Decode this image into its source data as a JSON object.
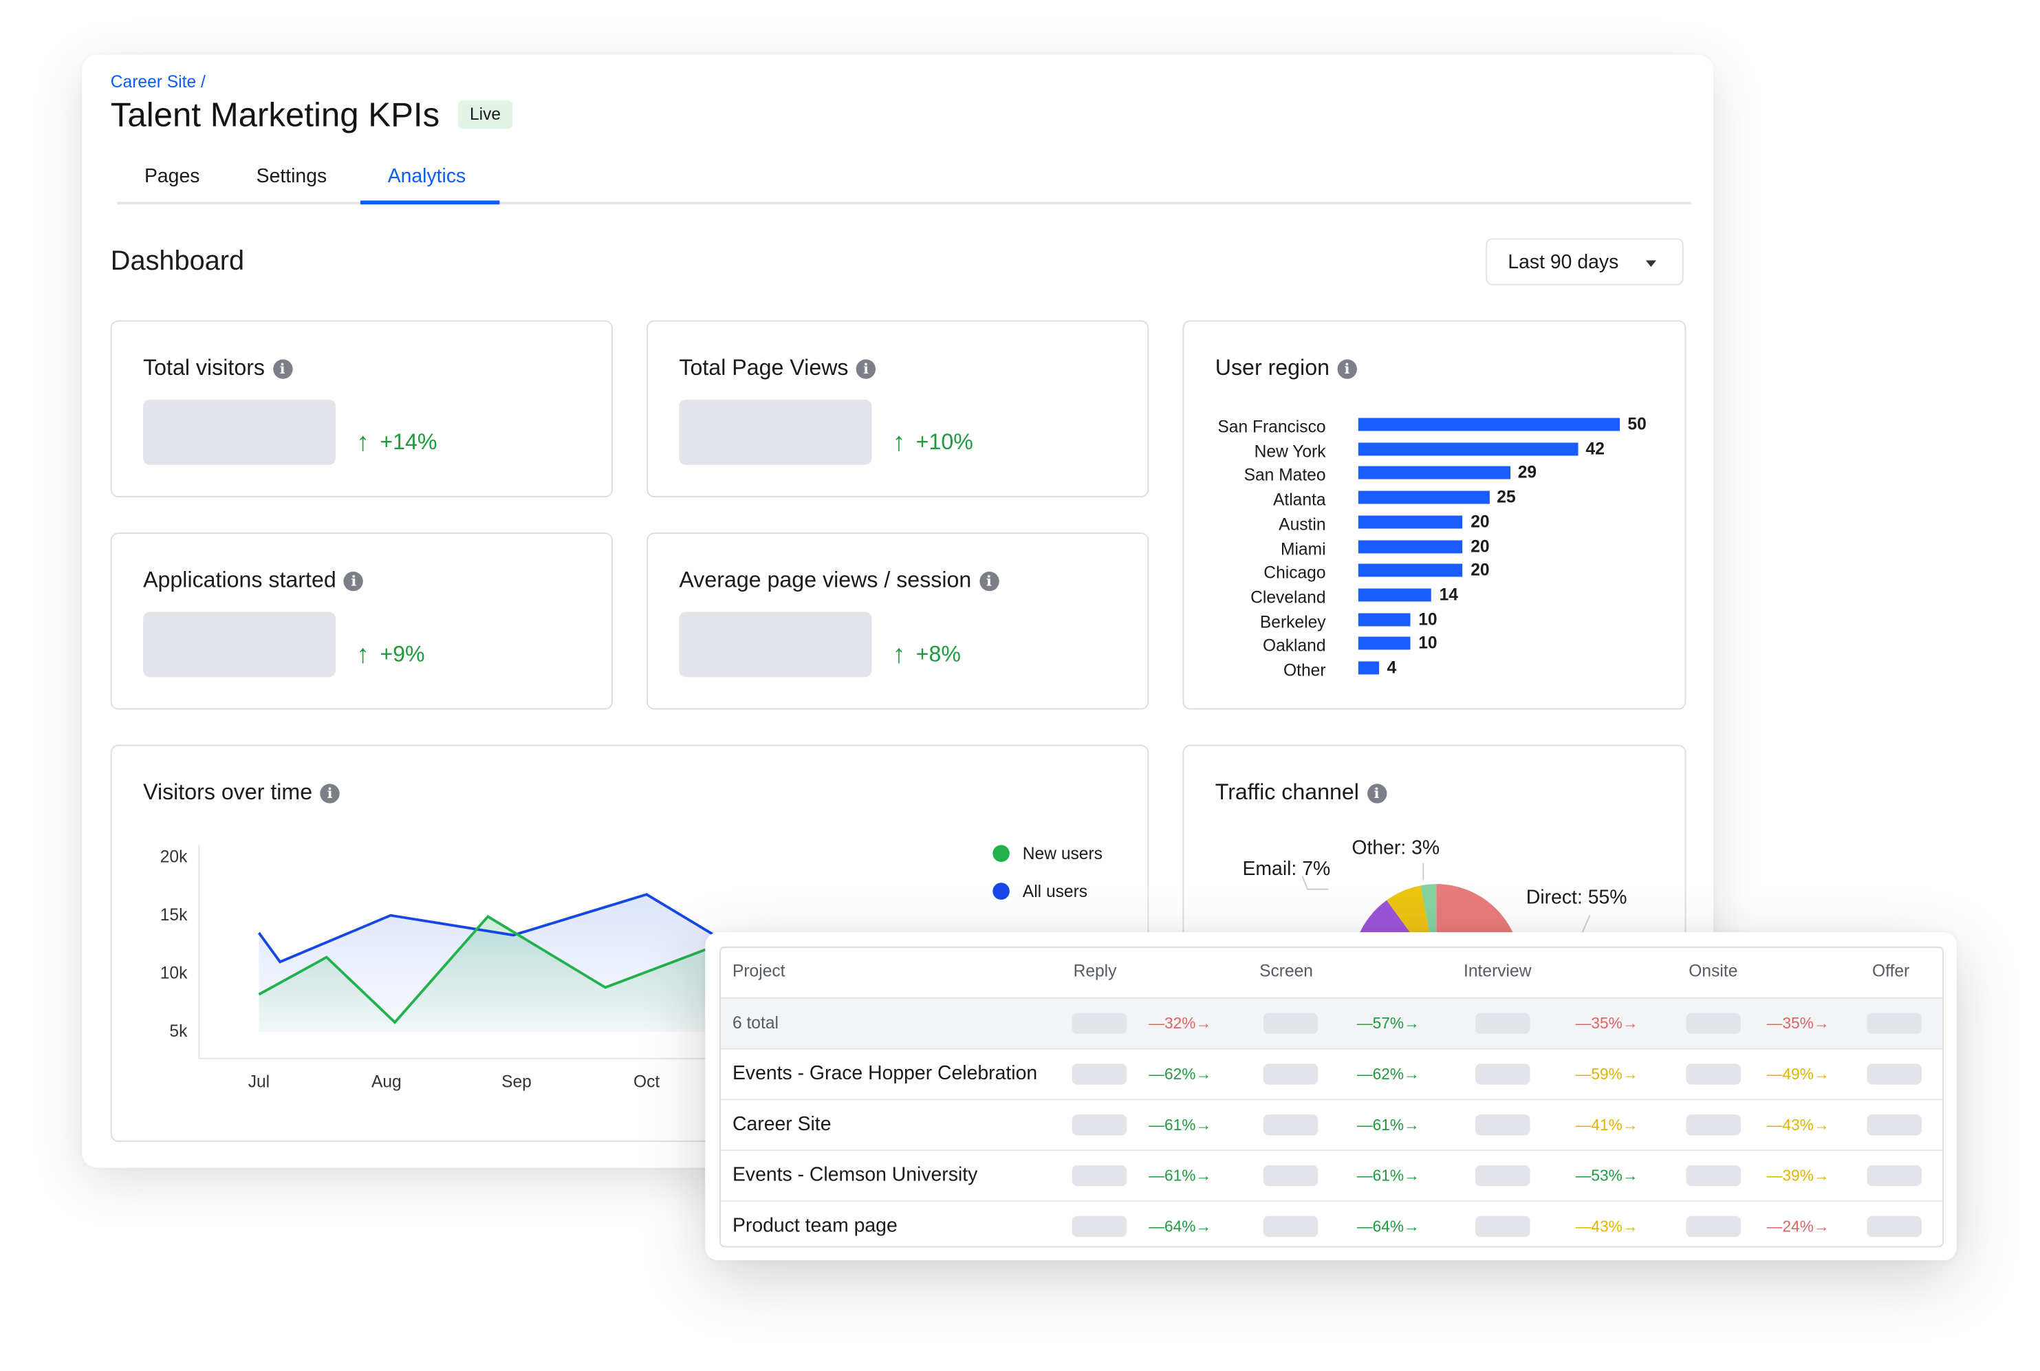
{
  "breadcrumb": "Career Site /",
  "title": "Talent Marketing KPIs",
  "status_badge": "Live",
  "tabs": [
    {
      "label": "Pages"
    },
    {
      "label": "Settings"
    },
    {
      "label": "Analytics",
      "active": true
    }
  ],
  "section_title": "Dashboard",
  "date_range": {
    "selected": "Last 90 days"
  },
  "colors": {
    "accent": "#0b5cff",
    "positive": "#1f9a3e",
    "bar": "#1a5cff",
    "new_users": "#22b14c",
    "all_users": "#1447e6"
  },
  "kpis": [
    {
      "title": "Total visitors",
      "delta": "+14%",
      "trend": "up"
    },
    {
      "title": "Total Page Views",
      "delta": "+10%",
      "trend": "up"
    },
    {
      "title": "Applications started",
      "delta": "+9%",
      "trend": "up"
    },
    {
      "title": "Average page views / session",
      "delta": "+8%",
      "trend": "up"
    }
  ],
  "chart_data": [
    {
      "type": "bar",
      "orientation": "horizontal",
      "title": "User region",
      "categories": [
        "San Francisco",
        "New York",
        "San Mateo",
        "Atlanta",
        "Austin",
        "Miami",
        "Chicago",
        "Cleveland",
        "Berkeley",
        "Oakland",
        "Other"
      ],
      "values": [
        50,
        42,
        29,
        25,
        20,
        20,
        20,
        14,
        10,
        10,
        4
      ]
    },
    {
      "type": "area",
      "title": "Visitors over time",
      "y_ticks": [
        "20k",
        "15k",
        "10k",
        "5k"
      ],
      "ylim": [
        5000,
        20000
      ],
      "x_ticks": [
        "Jul",
        "Aug",
        "Sep",
        "Oct"
      ],
      "legend": "top-right",
      "series": [
        {
          "name": "New users",
          "color": "#22b14c",
          "points": [
            [
              "07-01",
              8200
            ],
            [
              "07-17",
              11400
            ],
            [
              "08-03",
              5800
            ],
            [
              "08-25",
              14900
            ],
            [
              "09-22",
              8800
            ],
            [
              "10-16",
              12200
            ]
          ]
        },
        {
          "name": "All users",
          "color": "#1447e6",
          "points": [
            [
              "07-01",
              13500
            ],
            [
              "07-06",
              11000
            ],
            [
              "08-02",
              15000
            ],
            [
              "08-31",
              13300
            ],
            [
              "10-01",
              16800
            ],
            [
              "10-17",
              13300
            ]
          ]
        }
      ]
    },
    {
      "type": "pie",
      "title": "Traffic channel",
      "donut": true,
      "slices": [
        {
          "name": "Direct",
          "label": "Direct: 55%",
          "value": 55,
          "color": "#e87b7b"
        },
        {
          "value": 35,
          "color": "#9b55d8"
        },
        {
          "name": "Email",
          "label": "Email: 7%",
          "value": 7,
          "color": "#ecc413"
        },
        {
          "name": "Other",
          "label": "Other: 3%",
          "value": 3,
          "color": "#86d3a0"
        }
      ]
    }
  ],
  "funnel_table": {
    "columns": [
      "Project",
      "Reply",
      "Screen",
      "Interview",
      "Onsite",
      "Offer"
    ],
    "rows": [
      {
        "name": "6 total",
        "total": true,
        "rates": [
          {
            "v": "32%",
            "tone": "red"
          },
          {
            "v": "57%",
            "tone": "green"
          },
          {
            "v": "35%",
            "tone": "red"
          },
          {
            "v": "35%",
            "tone": "red"
          }
        ]
      },
      {
        "name": "Events - Grace Hopper Celebration",
        "rates": [
          {
            "v": "62%",
            "tone": "green"
          },
          {
            "v": "62%",
            "tone": "green"
          },
          {
            "v": "59%",
            "tone": "yellow"
          },
          {
            "v": "49%",
            "tone": "yellow"
          }
        ]
      },
      {
        "name": "Career Site",
        "rates": [
          {
            "v": "61%",
            "tone": "green"
          },
          {
            "v": "61%",
            "tone": "green"
          },
          {
            "v": "41%",
            "tone": "yellow"
          },
          {
            "v": "43%",
            "tone": "yellow"
          }
        ]
      },
      {
        "name": "Events - Clemson University",
        "rates": [
          {
            "v": "61%",
            "tone": "green"
          },
          {
            "v": "61%",
            "tone": "green"
          },
          {
            "v": "53%",
            "tone": "green"
          },
          {
            "v": "39%",
            "tone": "yellow"
          }
        ]
      },
      {
        "name": "Product team page",
        "rates": [
          {
            "v": "64%",
            "tone": "green"
          },
          {
            "v": "64%",
            "tone": "green"
          },
          {
            "v": "43%",
            "tone": "yellow"
          },
          {
            "v": "24%",
            "tone": "red"
          }
        ]
      }
    ]
  }
}
